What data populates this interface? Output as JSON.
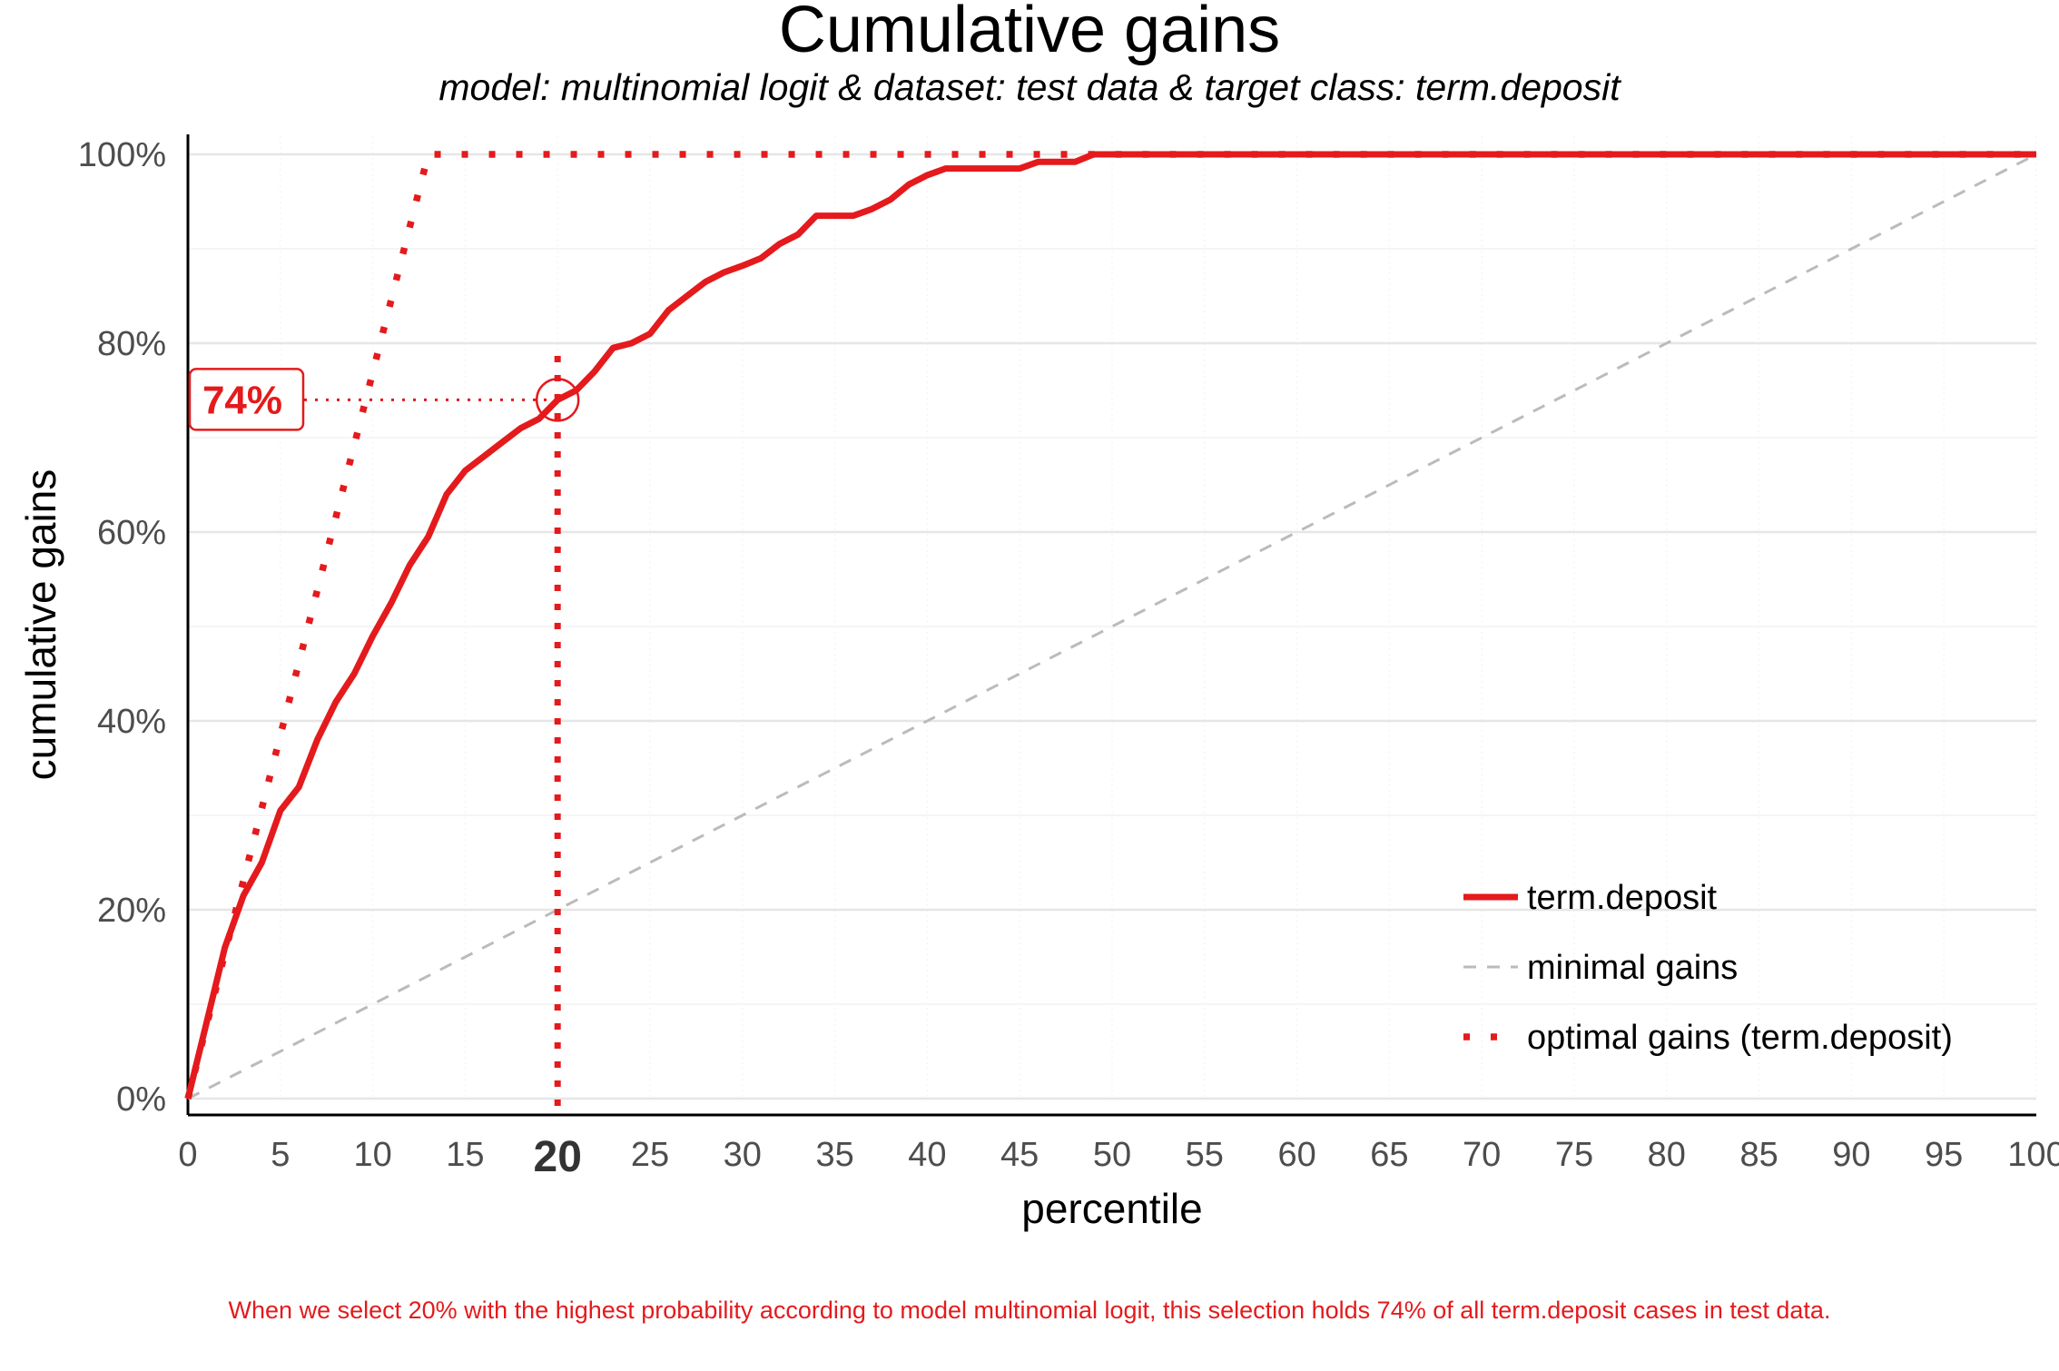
{
  "chart_data": {
    "type": "line",
    "title": "Cumulative gains",
    "subtitle": "model: multinomial logit  &  dataset: test data  &  target class: term.deposit",
    "xlabel": "percentile",
    "ylabel": "cumulative gains",
    "xlim": [
      0,
      100
    ],
    "ylim": [
      0,
      1
    ],
    "x_ticks": [
      0,
      5,
      10,
      15,
      20,
      25,
      30,
      35,
      40,
      45,
      50,
      55,
      60,
      65,
      70,
      75,
      80,
      85,
      90,
      95,
      100
    ],
    "x_tick_labels": [
      "0",
      "5",
      "10",
      "15",
      "20",
      "25",
      "30",
      "35",
      "40",
      "45",
      "50",
      "55",
      "60",
      "65",
      "70",
      "75",
      "80",
      "85",
      "90",
      "95",
      "100"
    ],
    "highlight_tick": 20,
    "y_ticks": [
      0,
      0.2,
      0.4,
      0.6,
      0.8,
      1.0
    ],
    "y_tick_labels": [
      "0%",
      "20%",
      "40%",
      "60%",
      "80%",
      "100%"
    ],
    "grid": true,
    "legend_position": "bottom-right",
    "series": [
      {
        "name": "term.deposit",
        "style": "solid",
        "color": "#E41A1C",
        "x": [
          0,
          1,
          2,
          3,
          4,
          5,
          6,
          7,
          8,
          9,
          10,
          11,
          12,
          13,
          14,
          15,
          16,
          17,
          18,
          19,
          20,
          21,
          22,
          23,
          24,
          25,
          26,
          27,
          28,
          29,
          30,
          31,
          32,
          33,
          34,
          35,
          36,
          37,
          38,
          39,
          40,
          41,
          42,
          43,
          44,
          45,
          46,
          47,
          48,
          49,
          50,
          60,
          70,
          80,
          90,
          100
        ],
        "y": [
          0,
          0.08,
          0.16,
          0.215,
          0.25,
          0.305,
          0.33,
          0.38,
          0.42,
          0.45,
          0.49,
          0.525,
          0.565,
          0.595,
          0.64,
          0.665,
          0.68,
          0.695,
          0.71,
          0.72,
          0.74,
          0.75,
          0.77,
          0.795,
          0.8,
          0.81,
          0.835,
          0.85,
          0.865,
          0.875,
          0.882,
          0.89,
          0.905,
          0.915,
          0.935,
          0.935,
          0.935,
          0.942,
          0.952,
          0.968,
          0.978,
          0.985,
          0.985,
          0.985,
          0.985,
          0.985,
          0.992,
          0.992,
          0.992,
          1.0,
          1.0,
          1.0,
          1.0,
          1.0,
          1.0,
          1.0
        ]
      },
      {
        "name": "minimal gains",
        "style": "dashed",
        "color": "#BBBBBB",
        "x": [
          0,
          100
        ],
        "y": [
          0,
          1
        ]
      },
      {
        "name": "optimal gains (term.deposit)",
        "style": "dotted",
        "color": "#E41A1C",
        "x": [
          0,
          13,
          100
        ],
        "y": [
          0,
          1,
          1
        ]
      }
    ],
    "annotation": {
      "x": 20,
      "y": 0.74,
      "label": "74%",
      "color": "#E41A1C"
    },
    "caption": "When we select 20% with the highest probability according to model multinomial logit, this selection holds 74% of all term.deposit cases in test data.",
    "caption_color": "#E41A1C"
  }
}
